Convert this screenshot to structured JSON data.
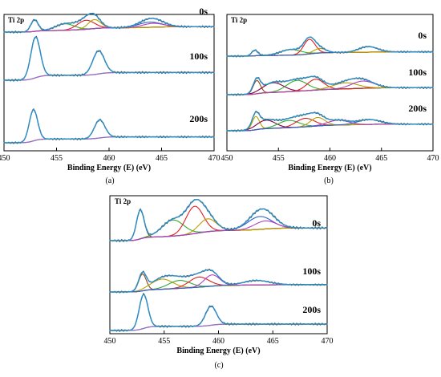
{
  "chart_data": [
    {
      "type": "line",
      "panel_caption": "(a)",
      "title": "Ti 2p",
      "xlabel": "Binding Energy (E) (eV)",
      "ylabel": "",
      "xlim": [
        450,
        470
      ],
      "xticks": [
        450,
        455,
        460,
        465,
        470
      ],
      "grid": false,
      "spectra": [
        {
          "time_label": "0s",
          "peaks": [
            {
              "center": 452.9,
              "height": 0.45,
              "width": 0.35,
              "color": "#8b4513"
            },
            {
              "center": 455.8,
              "height": 0.25,
              "width": 0.9,
              "color": "#33aa33"
            },
            {
              "center": 457.8,
              "height": 0.35,
              "width": 0.8,
              "color": "#e02020"
            },
            {
              "center": 458.6,
              "height": 0.35,
              "width": 0.6,
              "color": "#b8a000"
            },
            {
              "center": 463.9,
              "height": 0.2,
              "width": 1.1,
              "color": "#3060d0"
            },
            {
              "center": 464.2,
              "height": 0.15,
              "width": 1.0,
              "color": "#b040c0"
            }
          ]
        },
        {
          "time_label": "100s",
          "peaks": [
            {
              "center": 453.0,
              "height": 1.5,
              "width": 0.45,
              "color": "#b060d0"
            },
            {
              "center": 459.0,
              "height": 0.85,
              "width": 0.55,
              "color": "#b060d0"
            }
          ]
        },
        {
          "time_label": "200s",
          "peaks": [
            {
              "center": 452.8,
              "height": 1.3,
              "width": 0.4,
              "color": "#b060d0"
            },
            {
              "center": 459.1,
              "height": 0.75,
              "width": 0.5,
              "color": "#b060d0"
            }
          ]
        }
      ]
    },
    {
      "type": "line",
      "panel_caption": "(b)",
      "title": "Ti 2p",
      "xlabel": "Binding Energy (E) (eV)",
      "ylabel": "",
      "xlim": [
        450,
        470
      ],
      "xticks": [
        450,
        455,
        460,
        465,
        470
      ],
      "grid": false,
      "spectra": [
        {
          "time_label": "0s",
          "peaks": [
            {
              "center": 452.7,
              "height": 0.25,
              "width": 0.3,
              "color": "#8b4513"
            },
            {
              "center": 456.2,
              "height": 0.25,
              "width": 1.0,
              "color": "#33aa33"
            },
            {
              "center": 458.0,
              "height": 0.65,
              "width": 0.55,
              "color": "#e02020"
            },
            {
              "center": 459.0,
              "height": 0.2,
              "width": 0.6,
              "color": "#b8a000"
            },
            {
              "center": 463.7,
              "height": 0.25,
              "width": 0.9,
              "color": "#3060d0"
            }
          ]
        },
        {
          "time_label": "100s",
          "peaks": [
            {
              "center": 452.9,
              "height": 0.55,
              "width": 0.35,
              "color": "#8b4513"
            },
            {
              "center": 454.5,
              "height": 0.4,
              "width": 1.0,
              "color": "#800040"
            },
            {
              "center": 456.8,
              "height": 0.45,
              "width": 1.0,
              "color": "#33aa33"
            },
            {
              "center": 458.6,
              "height": 0.45,
              "width": 0.8,
              "color": "#e02020"
            },
            {
              "center": 461.5,
              "height": 0.25,
              "width": 1.2,
              "color": "#b8a000"
            },
            {
              "center": 463.2,
              "height": 0.3,
              "width": 1.1,
              "color": "#b040c0"
            }
          ]
        },
        {
          "time_label": "200s",
          "peaks": [
            {
              "center": 452.8,
              "height": 0.55,
              "width": 0.35,
              "color": "#b8a000"
            },
            {
              "center": 453.8,
              "height": 0.35,
              "width": 0.9,
              "color": "#800040"
            },
            {
              "center": 456.0,
              "height": 0.3,
              "width": 1.0,
              "color": "#33aa33"
            },
            {
              "center": 457.6,
              "height": 0.35,
              "width": 0.9,
              "color": "#e02020"
            },
            {
              "center": 458.8,
              "height": 0.35,
              "width": 0.7,
              "color": "#b8a000"
            },
            {
              "center": 460.8,
              "height": 0.2,
              "width": 1.0,
              "color": "#b040c0"
            },
            {
              "center": 463.8,
              "height": 0.2,
              "width": 1.1,
              "color": "#3060d0"
            }
          ]
        }
      ]
    },
    {
      "type": "line",
      "panel_caption": "(c)",
      "title": "Ti 2p",
      "xlabel": "Binding Energy (E) (eV)",
      "ylabel": "",
      "xlim": [
        450,
        470
      ],
      "xticks": [
        450,
        455,
        460,
        465,
        470
      ],
      "grid": false,
      "spectra": [
        {
          "time_label": "0s",
          "peaks": [
            {
              "center": 452.8,
              "height": 0.9,
              "width": 0.35,
              "color": "#8b4513"
            },
            {
              "center": 455.8,
              "height": 0.5,
              "width": 1.0,
              "color": "#33aa33"
            },
            {
              "center": 457.8,
              "height": 0.85,
              "width": 0.8,
              "color": "#e02020"
            },
            {
              "center": 459.0,
              "height": 0.4,
              "width": 0.8,
              "color": "#b8a000"
            },
            {
              "center": 463.8,
              "height": 0.4,
              "width": 1.1,
              "color": "#3060d0"
            },
            {
              "center": 464.3,
              "height": 0.25,
              "width": 1.0,
              "color": "#b040c0"
            }
          ]
        },
        {
          "time_label": "100s",
          "peaks": [
            {
              "center": 453.0,
              "height": 0.75,
              "width": 0.35,
              "color": "#8b4513"
            },
            {
              "center": 454.8,
              "height": 0.45,
              "width": 1.0,
              "color": "#b8a000"
            },
            {
              "center": 456.4,
              "height": 0.35,
              "width": 1.0,
              "color": "#33aa33"
            },
            {
              "center": 458.2,
              "height": 0.45,
              "width": 0.9,
              "color": "#e02020"
            },
            {
              "center": 459.4,
              "height": 0.5,
              "width": 0.7,
              "color": "#b040c0"
            },
            {
              "center": 463.5,
              "height": 0.2,
              "width": 1.2,
              "color": "#3060d0"
            }
          ]
        },
        {
          "time_label": "200s",
          "peaks": [
            {
              "center": 453.1,
              "height": 1.25,
              "width": 0.4,
              "color": "#b060d0"
            },
            {
              "center": 459.3,
              "height": 0.7,
              "width": 0.5,
              "color": "#b060d0"
            }
          ]
        }
      ]
    }
  ],
  "colors": {
    "envelope": "#2a8fc8",
    "raw": "#555555",
    "background_0s": "#e07020",
    "background_other": "#20a060",
    "axis": "#000000"
  }
}
